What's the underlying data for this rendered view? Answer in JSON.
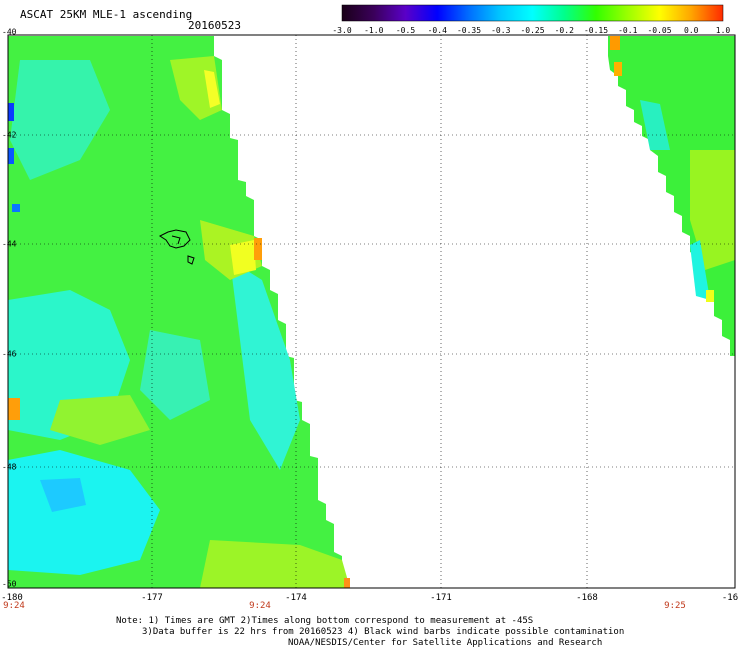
{
  "title": "ASCAT 25KM MLE-1 ascending",
  "date": "20160523",
  "colorbar": {
    "labels": [
      "-3.0",
      "-1.0",
      "-0.5",
      "-0.4",
      "-0.35",
      "-0.3",
      "-0.25",
      "-0.2",
      "-0.15",
      "-0.1",
      "-0.05",
      "0.0",
      "1.0"
    ],
    "colors": [
      "#1a0018",
      "#3a005a",
      "#5a00c8",
      "#0000ff",
      "#006eff",
      "#00c8ff",
      "#00ffff",
      "#00ff8c",
      "#32ff00",
      "#9bff00",
      "#ffff00",
      "#ffa500",
      "#ff2a00"
    ]
  },
  "axes": {
    "lat_labels": [
      "-40",
      "-42",
      "-44",
      "-46",
      "-48",
      "-50"
    ],
    "lon_labels": [
      "-180",
      "-177",
      "-174",
      "-171",
      "-168",
      "-16"
    ],
    "time_labels": [
      "9:24",
      "9:24",
      "9:25"
    ]
  },
  "notes": {
    "line1": "Note: 1) Times are GMT 2)Times along bottom correspond to measurement at -45S",
    "line2": "3)Data buffer is 22 hrs from 20160523 4) Black wind barbs indicate possible contamination",
    "line3": "NOAA/NESDIS/Center for Satellite Applications and Research"
  }
}
